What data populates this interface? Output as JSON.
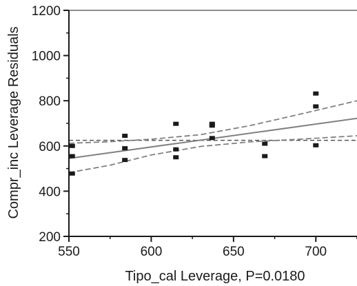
{
  "chart_data": {
    "type": "scatter",
    "title": "",
    "xlabel": "Tipo_cal Leverage, P=0.0180",
    "ylabel": "Compr_inc Leverage Residuals",
    "xlim": [
      550,
      725
    ],
    "ylim": [
      200,
      1200
    ],
    "x_ticks": [
      550,
      600,
      650,
      700
    ],
    "y_ticks": [
      200,
      400,
      600,
      800,
      1000,
      1200
    ],
    "grid": false,
    "legend": "none",
    "points": [
      {
        "x": 552,
        "y": 600
      },
      {
        "x": 552,
        "y": 555
      },
      {
        "x": 552,
        "y": 478
      },
      {
        "x": 584,
        "y": 645
      },
      {
        "x": 584,
        "y": 590
      },
      {
        "x": 584,
        "y": 538
      },
      {
        "x": 615,
        "y": 698
      },
      {
        "x": 615,
        "y": 585
      },
      {
        "x": 615,
        "y": 550
      },
      {
        "x": 637,
        "y": 698
      },
      {
        "x": 637,
        "y": 690
      },
      {
        "x": 637,
        "y": 635
      },
      {
        "x": 669,
        "y": 610
      },
      {
        "x": 669,
        "y": 555
      },
      {
        "x": 700,
        "y": 832
      },
      {
        "x": 700,
        "y": 775
      },
      {
        "x": 700,
        "y": 603
      }
    ],
    "fit_line": {
      "x": [
        550,
        725
      ],
      "y": [
        545,
        722
      ]
    },
    "mean_line": {
      "y": 625
    },
    "confidence_upper": {
      "x": [
        550,
        575,
        600,
        630,
        660,
        690,
        725
      ],
      "y": [
        612,
        619,
        630,
        650,
        690,
        740,
        800
      ]
    },
    "confidence_lower": {
      "x": [
        550,
        575,
        600,
        630,
        660,
        690,
        725
      ],
      "y": [
        482,
        515,
        560,
        598,
        618,
        630,
        645
      ]
    },
    "colors": {
      "fit": "#808080",
      "confidence": "#808080",
      "mean": "#555555",
      "points": "#1a1a1a",
      "axes": "#1a1a1a"
    }
  }
}
